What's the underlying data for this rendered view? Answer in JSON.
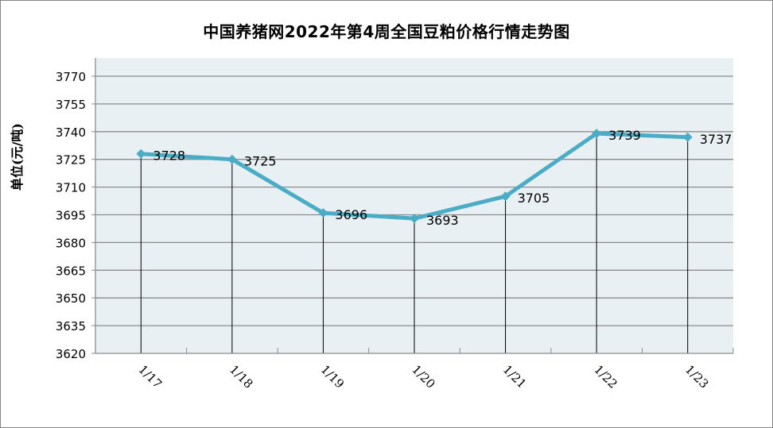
{
  "chart_data": {
    "type": "line",
    "title": "中国养猪网2022年第4周全国豆粕价格行情走势图",
    "xlabel": "",
    "ylabel": "单位(元/吨)",
    "categories": [
      "1/17",
      "1/18",
      "1/19",
      "1/20",
      "1/21",
      "1/22",
      "1/23"
    ],
    "series": [
      {
        "name": "豆粕价格",
        "values": [
          3728,
          3725,
          3696,
          3693,
          3705,
          3739,
          3737
        ],
        "color": "#4bacc6"
      }
    ],
    "y_ticks": [
      3620,
      3635,
      3650,
      3665,
      3680,
      3695,
      3710,
      3725,
      3740,
      3755,
      3770
    ],
    "ylim": [
      3620,
      3780
    ],
    "grid": true,
    "legend": "none",
    "data_labels": true,
    "drop_lines": true,
    "plot_background": "#e9f0f4"
  }
}
